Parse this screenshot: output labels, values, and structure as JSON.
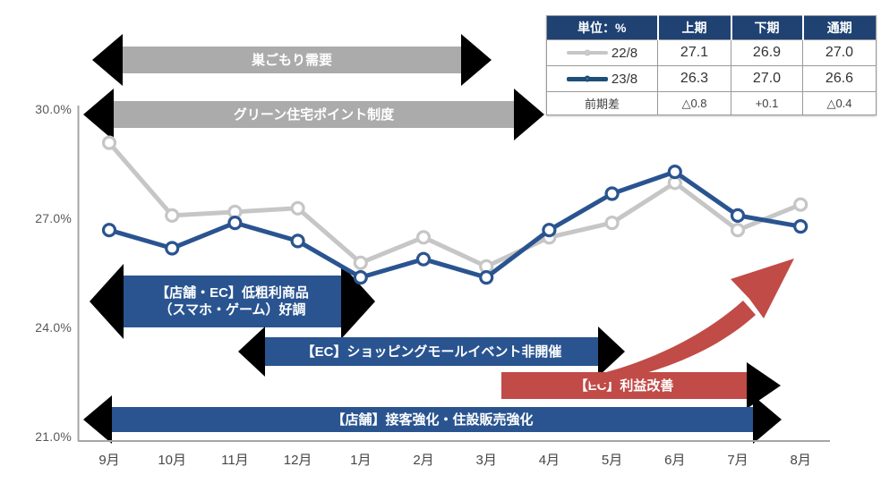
{
  "colors": {
    "series_22_8": "#c6c6c6",
    "series_23_8": "#2a5490",
    "gray_arrow": "#ababab",
    "blue_arrow": "#2a5490",
    "red_arrow": "#c14b47",
    "table_header": "#1f4273",
    "axis": "#a6a6a6"
  },
  "table": {
    "header": [
      "単位：%",
      "上期",
      "下期",
      "通期"
    ],
    "rows": [
      {
        "legend": "22/8",
        "values": [
          "27.1",
          "26.9",
          "27.0"
        ]
      },
      {
        "legend": "23/8",
        "values": [
          "26.3",
          "27.0",
          "26.6"
        ]
      }
    ],
    "diff_row": {
      "label": "前期差",
      "values": [
        "△0.8",
        "+0.1",
        "△0.4"
      ]
    }
  },
  "annotations": {
    "stay_home_demand": "巣ごもり需要",
    "green_housing_points": "グリーン住宅ポイント制度",
    "low_margin_line1": "【店舗・EC】低粗利商品",
    "low_margin_line2": "（スマホ・ゲーム）好調",
    "ec_mall_event": "【EC】ショッピングモールイベント非開催",
    "ec_profit": "【EC】利益改善",
    "store_service": "【店舗】接客強化・住設販売強化"
  },
  "chart_data": {
    "type": "line",
    "title": "",
    "categories": [
      "9月",
      "10月",
      "11月",
      "12月",
      "1月",
      "2月",
      "3月",
      "4月",
      "5月",
      "6月",
      "7月",
      "8月"
    ],
    "series": [
      {
        "name": "22/8",
        "color": "#c6c6c6",
        "values": [
          29.1,
          27.1,
          27.2,
          27.3,
          25.8,
          26.5,
          25.7,
          26.5,
          26.9,
          28.0,
          26.7,
          27.4
        ]
      },
      {
        "name": "23/8",
        "color": "#2a5490",
        "values": [
          26.7,
          26.2,
          26.9,
          26.4,
          25.4,
          25.9,
          25.4,
          26.7,
          27.7,
          28.3,
          27.1,
          26.8
        ]
      }
    ],
    "ylim": [
      21,
      30
    ],
    "yticks": [
      30,
      27,
      24,
      21
    ],
    "ytick_labels": [
      "30.0%",
      "27.0%",
      "24.0%",
      "21.0%"
    ],
    "unit": "%",
    "grid": false,
    "legend_position": "in-table-top-right",
    "summary": {
      "columns": [
        "上期",
        "下期",
        "通期"
      ],
      "22/8": [
        27.1,
        26.9,
        27.0
      ],
      "23/8": [
        26.3,
        27.0,
        26.6
      ],
      "前期差": [
        "△0.8",
        "+0.1",
        "△0.4"
      ]
    }
  }
}
